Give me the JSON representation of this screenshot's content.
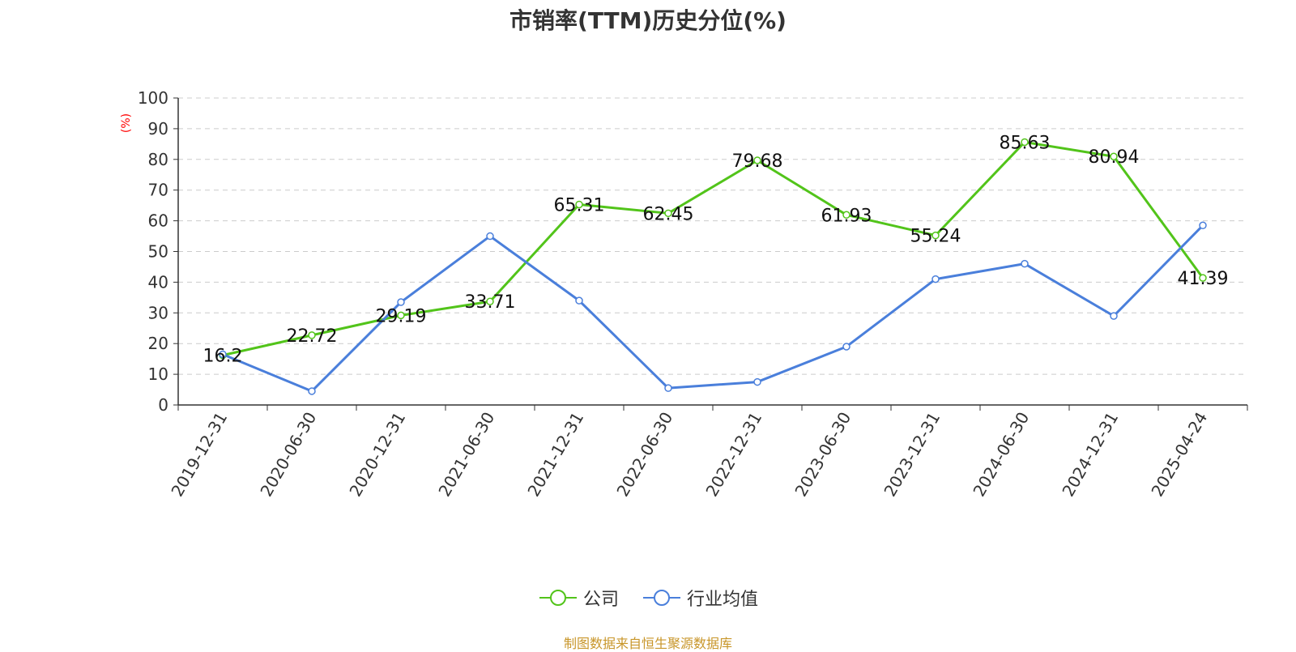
{
  "title": "市销率(TTM)历史分位(%)",
  "source": "制图数据来自恒生聚源数据库",
  "chart_data": {
    "type": "line",
    "title": "市销率(TTM)历史分位(%)",
    "ylabel": "(%)",
    "xlabel": "",
    "ylim": [
      0,
      100
    ],
    "yticks": [
      0,
      10,
      20,
      30,
      40,
      50,
      60,
      70,
      80,
      90,
      100
    ],
    "grid": true,
    "legend_position": "bottom-center",
    "categories": [
      "2019-12-31",
      "2020-06-30",
      "2020-12-31",
      "2021-06-30",
      "2021-12-31",
      "2022-06-30",
      "2022-12-31",
      "2023-06-30",
      "2023-12-31",
      "2024-06-30",
      "2024-12-31",
      "2025-04-24"
    ],
    "series": [
      {
        "name": "公司",
        "color": "#52c41a",
        "values": [
          16.2,
          22.72,
          29.19,
          33.71,
          65.31,
          62.45,
          79.68,
          61.93,
          55.24,
          85.63,
          80.94,
          41.39
        ],
        "data_labels": [
          "16.2",
          "22.72",
          "29.19",
          "33.71",
          "65.31",
          "62.45",
          "79.68",
          "61.93",
          "55.24",
          "85.63",
          "80.94",
          "41.39"
        ]
      },
      {
        "name": "行业均值",
        "color": "#4a7fdb",
        "values": [
          16.5,
          4.5,
          33.5,
          55.0,
          34.0,
          5.5,
          7.5,
          19.0,
          41.0,
          46.0,
          29.0,
          58.5
        ]
      }
    ]
  },
  "colors": {
    "axis": "#333333",
    "grid": "#cccccc",
    "ylabel": "#ff0000",
    "source": "#c8962a"
  }
}
